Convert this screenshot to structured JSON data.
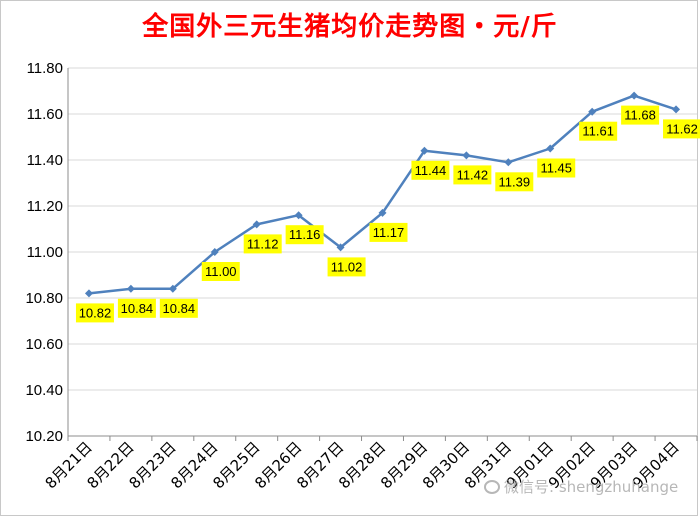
{
  "chart_data": {
    "type": "line",
    "title": "全国外三元生猪均价走势图・元/斤",
    "categories": [
      "8月21日",
      "8月22日",
      "8月23日",
      "8月24日",
      "8月25日",
      "8月26日",
      "8月27日",
      "8月28日",
      "8月29日",
      "8月30日",
      "8月31日",
      "9月01日",
      "9月02日",
      "9月03日",
      "9月04日"
    ],
    "series": [
      {
        "values": [
          10.82,
          10.84,
          10.84,
          11.0,
          11.12,
          11.16,
          11.02,
          11.17,
          11.44,
          11.42,
          11.39,
          11.45,
          11.61,
          11.68,
          11.62
        ]
      }
    ],
    "ylim": [
      10.2,
      11.8
    ],
    "yticks": [
      "10.20",
      "10.40",
      "10.60",
      "10.80",
      "11.00",
      "11.20",
      "11.40",
      "11.60",
      "11.80"
    ],
    "data_labels": [
      "10.82",
      "10.84",
      "10.84",
      "11.00",
      "11.12",
      "11.16",
      "11.02",
      "11.17",
      "11.44",
      "11.42",
      "11.39",
      "11.45",
      "11.61",
      "11.68",
      "11.62"
    ],
    "grid": true,
    "legend": "none",
    "line_color": "#4f81bd",
    "label_bg_color": "#ffff00"
  },
  "watermark": {
    "icon": "wechat-icon",
    "text": "微信号: shengzhuhange"
  }
}
